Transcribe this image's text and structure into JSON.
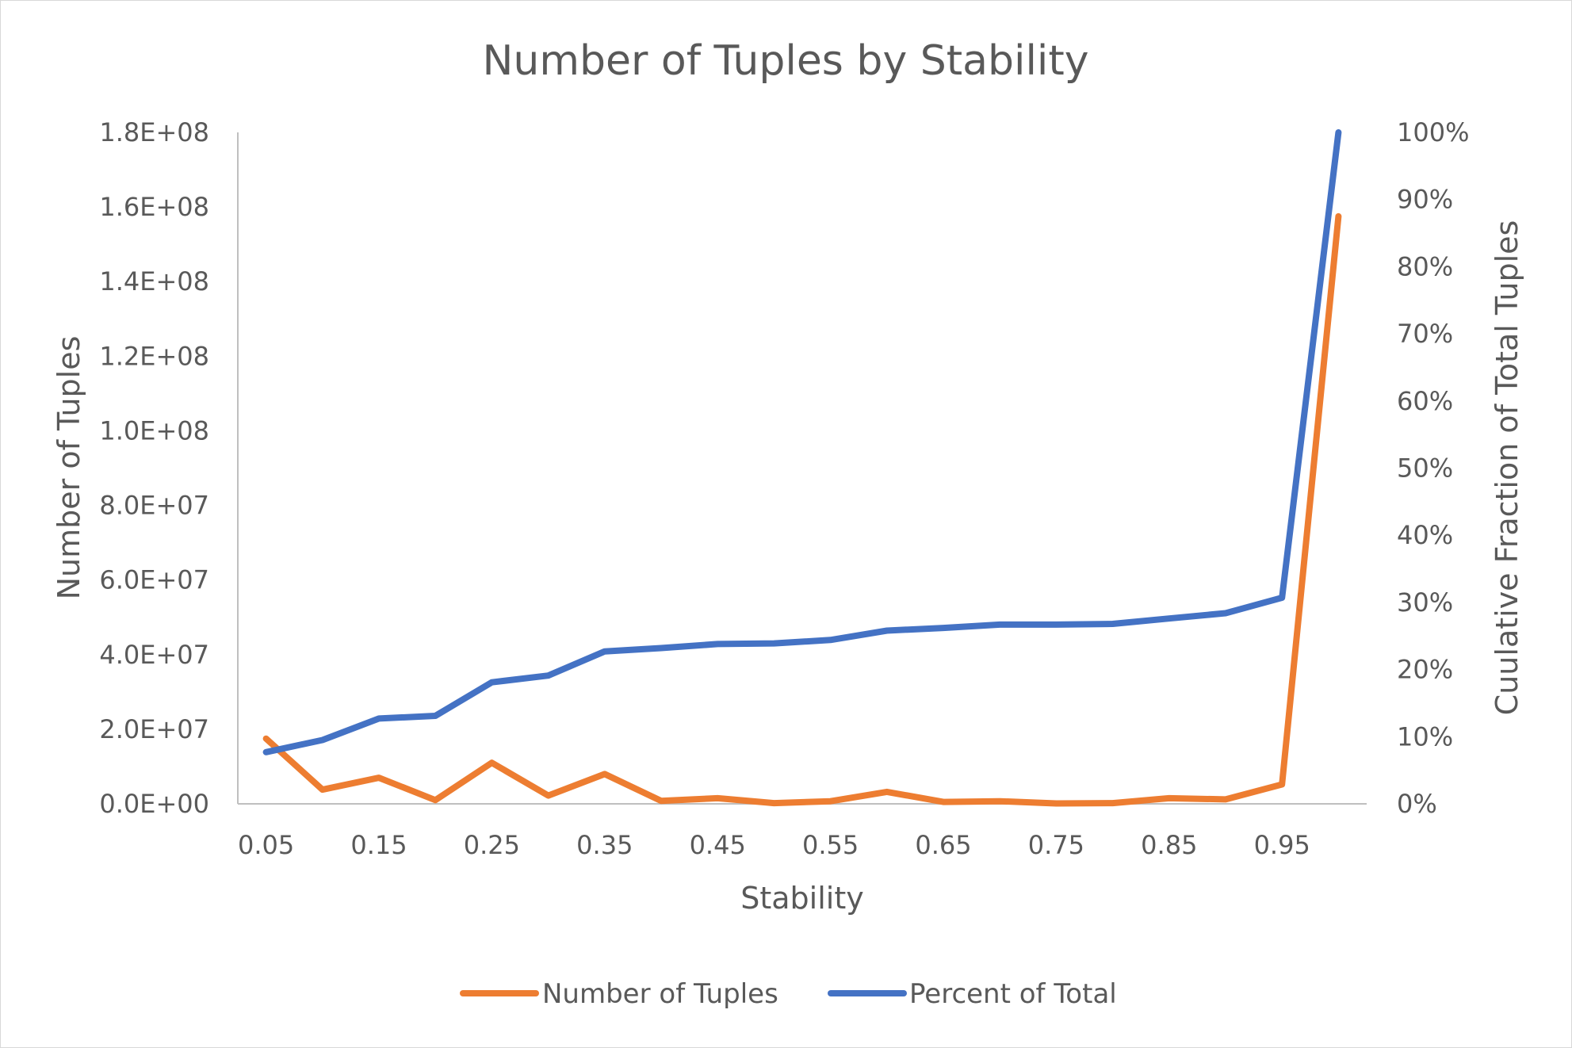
{
  "chart_data": {
    "type": "line",
    "title": "Number of Tuples by Stability",
    "xlabel": "Stability",
    "ylabel": "Number of Tuples",
    "y2label": "Cuulative Fraction of Total Tuples",
    "x": [
      0.05,
      0.1,
      0.15,
      0.2,
      0.25,
      0.3,
      0.35,
      0.4,
      0.45,
      0.5,
      0.55,
      0.6,
      0.65,
      0.7,
      0.75,
      0.8,
      0.85,
      0.9,
      0.95,
      1.0
    ],
    "x_tick_labels": [
      "0.05",
      "0.15",
      "0.25",
      "0.35",
      "0.45",
      "0.55",
      "0.65",
      "0.75",
      "0.85",
      "0.95"
    ],
    "ylim": [
      0,
      180000000
    ],
    "y_tick_labels": [
      "0.0E+00",
      "2.0E+07",
      "4.0E+07",
      "6.0E+07",
      "8.0E+07",
      "1.0E+08",
      "1.2E+08",
      "1.4E+08",
      "1.6E+08",
      "1.8E+08"
    ],
    "y2lim": [
      0,
      1.0
    ],
    "y2_tick_labels": [
      "0%",
      "10%",
      "20%",
      "30%",
      "40%",
      "50%",
      "60%",
      "70%",
      "80%",
      "90%",
      "100%"
    ],
    "grid": false,
    "legend_position": "bottom",
    "series": [
      {
        "name": "Number of Tuples",
        "axis": "left",
        "color": "#ED7D31",
        "values": [
          17500000,
          3800000,
          7000000,
          1000000,
          11000000,
          2200000,
          8000000,
          800000,
          1500000,
          200000,
          700000,
          3200000,
          500000,
          700000,
          100000,
          200000,
          1500000,
          1200000,
          5200000,
          157500000
        ]
      },
      {
        "name": "Percent of Total",
        "axis": "right",
        "color": "#4472C4",
        "values": [
          0.077,
          0.095,
          0.127,
          0.131,
          0.181,
          0.191,
          0.227,
          0.232,
          0.238,
          0.239,
          0.244,
          0.258,
          0.262,
          0.267,
          0.267,
          0.268,
          0.276,
          0.284,
          0.307,
          1.0
        ]
      }
    ]
  }
}
